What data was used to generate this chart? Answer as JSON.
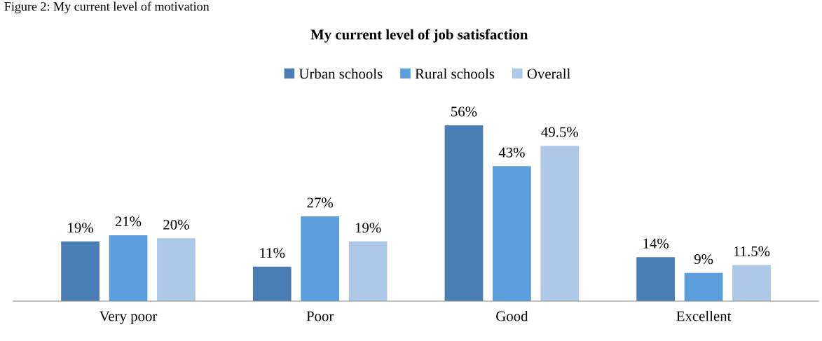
{
  "chart_data": {
    "type": "bar",
    "title": "My current level of job satisfaction",
    "annotations": [
      "Figure 2: My current level of motivation"
    ],
    "categories": [
      "Very poor",
      "Poor",
      "Good",
      "Excellent"
    ],
    "series": [
      {
        "name": "Urban schools",
        "color": "#4a7db4",
        "values": [
          19,
          11,
          56,
          14
        ],
        "value_labels": [
          "19%",
          "11%",
          "56%",
          "14%"
        ]
      },
      {
        "name": "Rural schools",
        "color": "#5a9fdc",
        "values": [
          21,
          27,
          43,
          9
        ],
        "value_labels": [
          "21%",
          "27%",
          "43%",
          "9%"
        ]
      },
      {
        "name": "Overall",
        "color": "#aec8e8",
        "values": [
          20,
          19,
          49.5,
          11.5
        ],
        "value_labels": [
          "20%",
          "19%",
          "49.5%",
          "11.5%"
        ]
      }
    ],
    "legend": "top",
    "grid": false
  }
}
